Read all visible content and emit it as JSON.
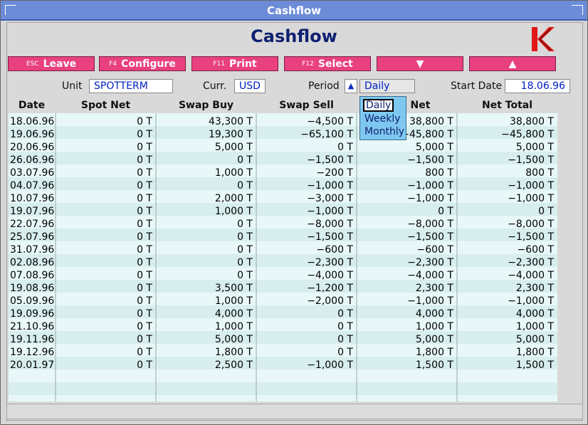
{
  "window": {
    "title": "Cashflow"
  },
  "page": {
    "heading": "Cashflow"
  },
  "toolbar": {
    "buttons": [
      {
        "key": "ESC",
        "label": "Leave"
      },
      {
        "key": "F4",
        "label": "Configure"
      },
      {
        "key": "F11",
        "label": "Print"
      },
      {
        "key": "F12",
        "label": "Select"
      },
      {
        "key": "",
        "label": "▼"
      },
      {
        "key": "",
        "label": "▲"
      }
    ]
  },
  "filters": {
    "unit_label": "Unit",
    "unit_value": "SPOTTERM",
    "curr_label": "Curr.",
    "curr_value": "USD",
    "period_label": "Period",
    "period_value": "Daily",
    "start_label": "Start Date",
    "start_value": "18.06.96"
  },
  "period_dropdown": {
    "options": [
      "Daily",
      "Weekly",
      "Monthly"
    ],
    "selected": "Daily"
  },
  "table": {
    "columns": [
      "Date",
      "Spot Net",
      "Swap Buy",
      "Swap Sell",
      "Net",
      "Net Total"
    ],
    "rows": [
      [
        "18.06.96",
        "0 T",
        "43,300 T",
        "−4,500 T",
        "38,800 T",
        "38,800 T"
      ],
      [
        "19.06.96",
        "0 T",
        "19,300 T",
        "−65,100 T",
        "−45,800 T",
        "−45,800 T"
      ],
      [
        "20.06.96",
        "0 T",
        "5,000 T",
        "0 T",
        "5,000 T",
        "5,000 T"
      ],
      [
        "26.06.96",
        "0 T",
        "0 T",
        "−1,500 T",
        "−1,500 T",
        "−1,500 T"
      ],
      [
        "03.07.96",
        "0 T",
        "1,000 T",
        "−200 T",
        "800 T",
        "800 T"
      ],
      [
        "04.07.96",
        "0 T",
        "0 T",
        "−1,000 T",
        "−1,000 T",
        "−1,000 T"
      ],
      [
        "10.07.96",
        "0 T",
        "2,000 T",
        "−3,000 T",
        "−1,000 T",
        "−1,000 T"
      ],
      [
        "19.07.96",
        "0 T",
        "1,000 T",
        "−1,000 T",
        "0 T",
        "0 T"
      ],
      [
        "22.07.96",
        "0 T",
        "0 T",
        "−8,000 T",
        "−8,000 T",
        "−8,000 T"
      ],
      [
        "25.07.96",
        "0 T",
        "0 T",
        "−1,500 T",
        "−1,500 T",
        "−1,500 T"
      ],
      [
        "31.07.96",
        "0 T",
        "0 T",
        "−600 T",
        "−600 T",
        "−600 T"
      ],
      [
        "02.08.96",
        "0 T",
        "0 T",
        "−2,300 T",
        "−2,300 T",
        "−2,300 T"
      ],
      [
        "07.08.96",
        "0 T",
        "0 T",
        "−4,000 T",
        "−4,000 T",
        "−4,000 T"
      ],
      [
        "19.08.96",
        "0 T",
        "3,500 T",
        "−1,200 T",
        "2,300 T",
        "2,300 T"
      ],
      [
        "05.09.96",
        "0 T",
        "1,000 T",
        "−2,000 T",
        "−1,000 T",
        "−1,000 T"
      ],
      [
        "19.09.96",
        "0 T",
        "4,000 T",
        "0 T",
        "4,000 T",
        "4,000 T"
      ],
      [
        "21.10.96",
        "0 T",
        "1,000 T",
        "0 T",
        "1,000 T",
        "1,000 T"
      ],
      [
        "19.11.96",
        "0 T",
        "5,000 T",
        "0 T",
        "5,000 T",
        "5,000 T"
      ],
      [
        "19.12.96",
        "0 T",
        "1,800 T",
        "0 T",
        "1,800 T",
        "1,800 T"
      ],
      [
        "20.01.97",
        "0 T",
        "2,500 T",
        "−1,000 T",
        "1,500 T",
        "1,500 T"
      ]
    ]
  },
  "colors": {
    "accent_button": "#e9407f",
    "title_bar": "#6c8cd8",
    "heading": "#102070",
    "grid_bg": "#e8f8f8",
    "dropdown_bg": "#7ec8f0"
  }
}
